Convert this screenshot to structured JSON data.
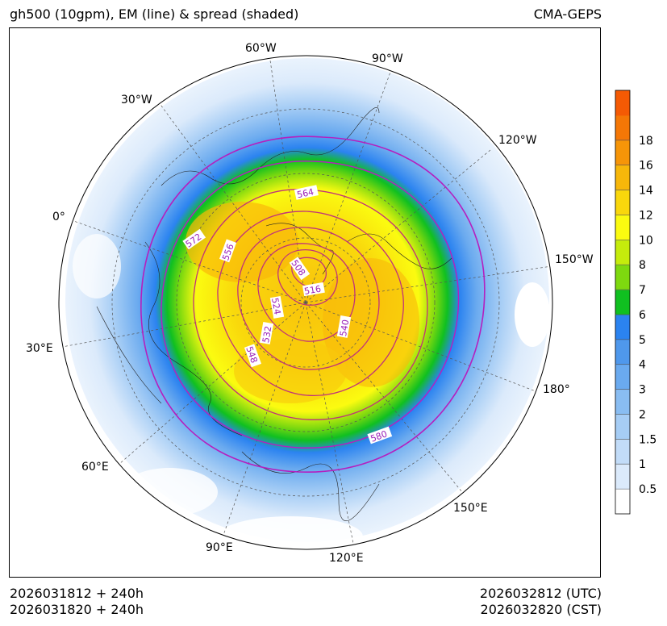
{
  "title_left": "gh500 (10gpm), EM (line) & spread (shaded)",
  "title_right": "CMA-GEPS",
  "footer": {
    "init_utc": "2026031812 + 240h",
    "init_cst": "2026031820 + 240h",
    "valid_utc": "2026032812 (UTC)",
    "valid_cst": "2026032820 (CST)"
  },
  "longitude_labels": [
    "60°W",
    "90°W",
    "30°W",
    "120°W",
    "0°",
    "150°W",
    "30°E",
    "180°",
    "60°E",
    "150°E",
    "90°E",
    "120°E"
  ],
  "contour_labels": [
    "564",
    "572",
    "556",
    "508",
    "516",
    "524",
    "532",
    "540",
    "548",
    "580"
  ],
  "colorbar": {
    "ticks": [
      "0.5",
      "1",
      "1.5",
      "2",
      "3",
      "4",
      "5",
      "6",
      "7",
      "8",
      "10",
      "12",
      "14",
      "16",
      "18"
    ],
    "colors": [
      "#ffffff",
      "#dbeafb",
      "#c2dcf8",
      "#a6cdf5",
      "#89bdf2",
      "#6aaaef",
      "#4f98ec",
      "#2b83f0",
      "#10c020",
      "#7ed90f",
      "#c5ec0c",
      "#fbfb10",
      "#f9d70c",
      "#f7b70a",
      "#f69508",
      "#f57706",
      "#f55a04"
    ],
    "top_color": "#f55a04"
  },
  "colors": {
    "contour_line": "#c0337a",
    "contour_outer": "#b51fbf",
    "label_text": "#9a1fb8"
  }
}
